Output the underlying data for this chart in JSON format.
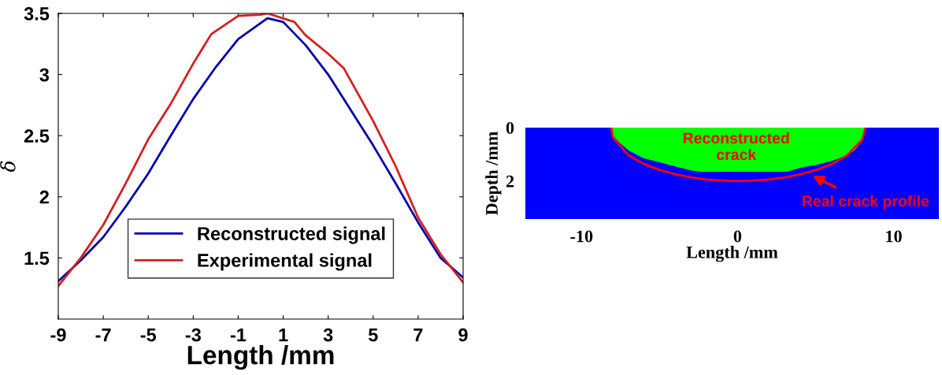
{
  "chart_data": [
    {
      "type": "line",
      "xlabel": "Length /mm",
      "ylabel": "δ",
      "xlim": [
        -9,
        9
      ],
      "ylim": [
        1,
        3.5
      ],
      "xticks": [
        -9,
        -7,
        -5,
        -3,
        -1,
        1,
        3,
        5,
        7,
        9
      ],
      "yticks": [
        1.5,
        2,
        2.5,
        3,
        3.5
      ],
      "legend": "bottom",
      "grid": false,
      "series": [
        {
          "name": "Reconstructed signal",
          "color": "#0000aa",
          "x": [
            -9,
            -8,
            -7,
            -6,
            -5,
            -4,
            -3,
            -2,
            -1,
            0.3,
            1,
            2,
            3,
            4,
            5,
            6,
            7,
            8,
            9
          ],
          "values": [
            1.31,
            1.48,
            1.67,
            1.92,
            2.19,
            2.5,
            2.8,
            3.06,
            3.29,
            3.46,
            3.43,
            3.24,
            3.0,
            2.71,
            2.42,
            2.11,
            1.79,
            1.5,
            1.34
          ]
        },
        {
          "name": "Experimental signal",
          "color": "#d42020",
          "x": [
            -9,
            -8,
            -7,
            -6,
            -5,
            -4,
            -3,
            -2.2,
            -1,
            0,
            0.3,
            1.5,
            2,
            3,
            3.7,
            5,
            6,
            7,
            8,
            9
          ],
          "values": [
            1.27,
            1.5,
            1.77,
            2.11,
            2.47,
            2.76,
            3.09,
            3.33,
            3.48,
            3.49,
            3.5,
            3.43,
            3.32,
            3.17,
            3.05,
            2.62,
            2.25,
            1.83,
            1.53,
            1.3
          ]
        }
      ]
    },
    {
      "type": "area",
      "xlabel": "Length /mm",
      "ylabel": "Depth /mm",
      "xlim": [
        -13.6,
        12.9
      ],
      "ylim": [
        3.42,
        0
      ],
      "xticks": [
        -10,
        0,
        10
      ],
      "yticks": [
        0,
        2
      ],
      "bands": [
        {
          "axis": "y",
          "from": 0,
          "to": 3.42,
          "color": "#0000ff"
        }
      ],
      "series": [
        {
          "type": "area",
          "color": "#00ff00",
          "x": [
            -8.1,
            -8,
            -7.5,
            -7,
            -6,
            -5,
            -4,
            -3,
            -2.4,
            3.2,
            4,
            5,
            6,
            7,
            7.5,
            8,
            8.2
          ],
          "values": [
            0,
            0.3,
            0.6,
            0.85,
            1.15,
            1.3,
            1.45,
            1.6,
            1.65,
            1.65,
            1.5,
            1.4,
            1.25,
            1.05,
            0.85,
            0.5,
            0
          ]
        },
        {
          "type": "line",
          "color": "#ff0000",
          "x": [
            -8.1,
            -8,
            -7,
            -6,
            -5,
            -4,
            -3,
            -2,
            -1,
            0,
            1,
            2,
            3,
            4,
            5,
            6,
            7,
            8,
            8.2
          ],
          "values": [
            0,
            0.35,
            1.03,
            1.36,
            1.58,
            1.74,
            1.86,
            1.94,
            1.98,
            2.0,
            1.98,
            1.94,
            1.87,
            1.75,
            1.59,
            1.37,
            1.05,
            0.45,
            0
          ]
        }
      ],
      "annotations": [
        "Reconstructed\ncrack",
        {
          "text": "Real crack profile",
          "x": 4.8,
          "y": 1.8
        }
      ]
    }
  ]
}
